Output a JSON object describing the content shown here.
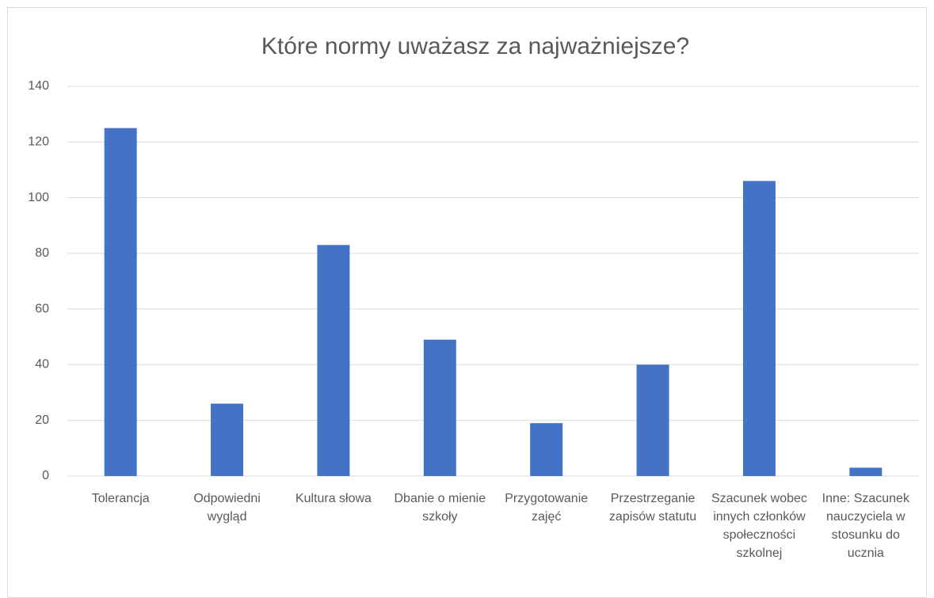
{
  "chart_data": {
    "type": "bar",
    "title": "Które normy uważasz za najważniejsze?",
    "categories": [
      "Tolerancja",
      "Odpowiedni wygląd",
      "Kultura słowa",
      "Dbanie o mienie szkoły",
      "Przygotowanie zajęć",
      "Przestrzeganie zapisów statutu",
      "Szacunek wobec innych członków społeczności szkolnej",
      "Inne: Szacunek nauczyciela w stosunku do ucznia"
    ],
    "values": [
      125,
      26,
      83,
      49,
      19,
      40,
      106,
      3
    ],
    "color": "#4472c4",
    "ylim": [
      0,
      140
    ],
    "yticks": [
      0,
      20,
      40,
      60,
      80,
      100,
      120,
      140
    ],
    "grid": true
  }
}
